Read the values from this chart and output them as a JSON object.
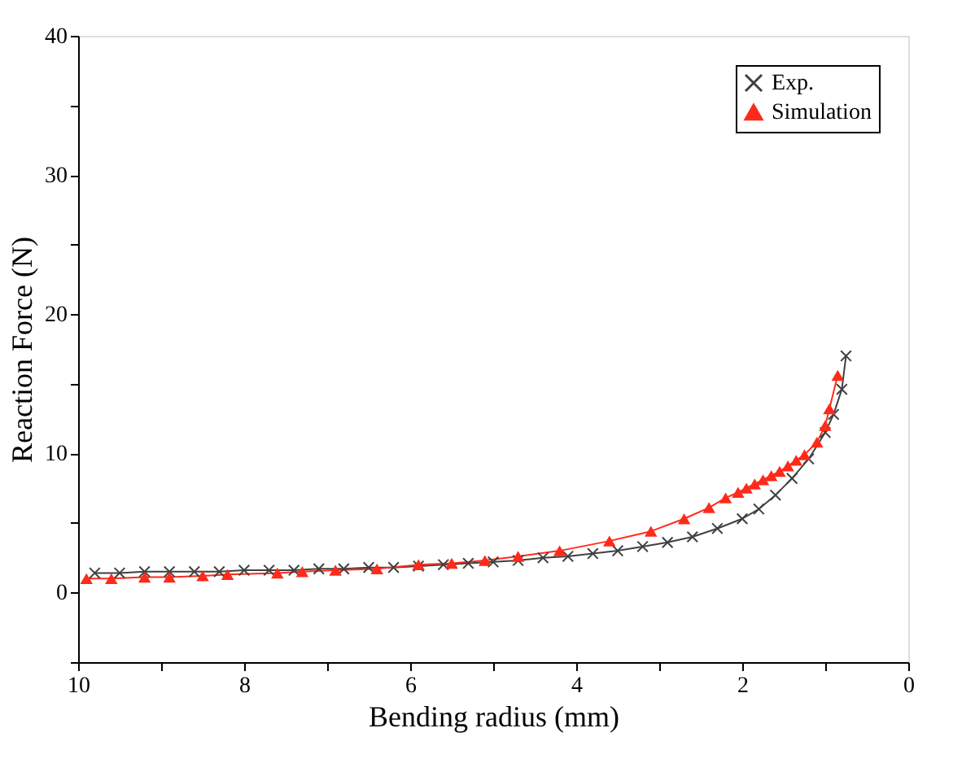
{
  "chart_data": {
    "type": "line",
    "xlabel": "Bending radius (mm)",
    "ylabel": "Reaction Force (N)",
    "xlim": [
      10,
      0
    ],
    "xticks": [
      10,
      {
        "value": 9,
        "label": null
      },
      8,
      {
        "value": 7,
        "label": null
      },
      6,
      {
        "value": 5,
        "label": null
      },
      4,
      {
        "value": 3,
        "label": null
      },
      2,
      {
        "value": 1,
        "label": null
      },
      0
    ],
    "ylim": [
      -5,
      40
    ],
    "yticks": [
      {
        "value": -5,
        "label": null
      },
      0,
      {
        "value": 5,
        "label": null
      },
      10,
      {
        "value": 15,
        "label": null
      },
      20,
      {
        "value": 25,
        "label": null
      },
      30,
      {
        "value": 35,
        "label": null
      },
      40
    ],
    "grid": false,
    "legend": "top right",
    "line_style": "solid",
    "series": [
      {
        "name": "Exp.",
        "color": "#404040",
        "marker": "cross",
        "x": [
          9.8,
          9.5,
          9.2,
          8.9,
          8.6,
          8.3,
          8.0,
          7.7,
          7.4,
          7.1,
          6.8,
          6.5,
          6.2,
          5.9,
          5.6,
          5.3,
          5.0,
          4.7,
          4.4,
          4.1,
          3.8,
          3.5,
          3.2,
          2.9,
          2.6,
          2.3,
          2.0,
          1.8,
          1.6,
          1.4,
          1.2,
          1.0,
          0.9,
          0.8,
          0.75
        ],
        "values": [
          1.4,
          1.4,
          1.5,
          1.5,
          1.5,
          1.5,
          1.6,
          1.6,
          1.6,
          1.7,
          1.7,
          1.8,
          1.8,
          1.9,
          2.0,
          2.1,
          2.2,
          2.3,
          2.5,
          2.6,
          2.8,
          3.0,
          3.3,
          3.6,
          4.0,
          4.6,
          5.3,
          6.0,
          7.0,
          8.2,
          9.6,
          11.5,
          12.8,
          14.6,
          17.0
        ]
      },
      {
        "name": "Simulation",
        "color": "#ff2a1a",
        "marker": "triangle",
        "x": [
          9.9,
          9.6,
          9.2,
          8.9,
          8.5,
          8.2,
          7.6,
          7.3,
          6.9,
          6.4,
          5.9,
          5.5,
          5.1,
          4.7,
          4.2,
          3.6,
          3.1,
          2.7,
          2.4,
          2.2,
          2.05,
          1.95,
          1.85,
          1.75,
          1.65,
          1.55,
          1.45,
          1.35,
          1.25,
          1.1,
          1.0,
          0.95,
          0.85
        ],
        "values": [
          1.0,
          1.0,
          1.1,
          1.1,
          1.2,
          1.3,
          1.4,
          1.5,
          1.6,
          1.7,
          2.0,
          2.1,
          2.3,
          2.6,
          3.0,
          3.7,
          4.4,
          5.3,
          6.1,
          6.8,
          7.2,
          7.5,
          7.8,
          8.1,
          8.4,
          8.7,
          9.1,
          9.5,
          9.9,
          10.8,
          12.0,
          13.2,
          15.6
        ]
      }
    ]
  }
}
